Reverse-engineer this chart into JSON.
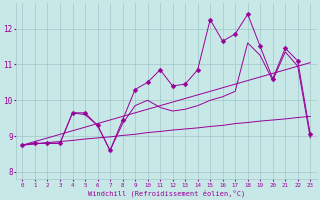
{
  "xlabel": "Windchill (Refroidissement éolien,°C)",
  "bg_color": "#c8e8e8",
  "line_color": "#990099",
  "grid_color": "#a0c8c8",
  "xlim": [
    -0.5,
    23.5
  ],
  "ylim": [
    7.8,
    12.7
  ],
  "xticks": [
    0,
    1,
    2,
    3,
    4,
    5,
    6,
    7,
    8,
    9,
    10,
    11,
    12,
    13,
    14,
    15,
    16,
    17,
    18,
    19,
    20,
    21,
    22,
    23
  ],
  "yticks": [
    8,
    9,
    10,
    11,
    12
  ],
  "series": [
    {
      "x": [
        0,
        1,
        2,
        3,
        4,
        5,
        6,
        7,
        8,
        9,
        10,
        11,
        12,
        13,
        14,
        15,
        16,
        17,
        18,
        19,
        20,
        21,
        22,
        23
      ],
      "y": [
        8.75,
        8.78,
        8.82,
        8.85,
        8.88,
        8.92,
        8.95,
        8.98,
        9.02,
        9.05,
        9.1,
        9.13,
        9.17,
        9.2,
        9.23,
        9.27,
        9.3,
        9.35,
        9.38,
        9.42,
        9.45,
        9.48,
        9.52,
        9.55
      ],
      "marker": null
    },
    {
      "x": [
        0,
        1,
        2,
        3,
        4,
        5,
        6,
        7,
        8,
        9,
        10,
        11,
        12,
        13,
        14,
        15,
        16,
        17,
        18,
        19,
        20,
        21,
        22,
        23
      ],
      "y": [
        8.75,
        8.85,
        8.95,
        9.05,
        9.15,
        9.25,
        9.35,
        9.45,
        9.55,
        9.65,
        9.75,
        9.85,
        9.95,
        10.05,
        10.15,
        10.25,
        10.35,
        10.45,
        10.55,
        10.65,
        10.75,
        10.85,
        10.95,
        11.05
      ],
      "marker": null
    },
    {
      "x": [
        0,
        1,
        2,
        3,
        4,
        5,
        6,
        7,
        8,
        9,
        10,
        11,
        12,
        13,
        14,
        15,
        16,
        17,
        18,
        19,
        20,
        21,
        22,
        23
      ],
      "y": [
        8.75,
        8.8,
        8.8,
        8.8,
        9.65,
        9.65,
        9.3,
        8.6,
        9.45,
        10.3,
        10.5,
        10.85,
        10.4,
        10.45,
        10.85,
        12.25,
        11.65,
        11.85,
        12.4,
        11.5,
        10.6,
        11.45,
        11.1,
        9.05
      ],
      "marker": "D"
    },
    {
      "x": [
        0,
        1,
        2,
        3,
        4,
        5,
        6,
        7,
        8,
        9,
        10,
        11,
        12,
        13,
        14,
        15,
        16,
        17,
        18,
        19,
        20,
        21,
        22,
        23
      ],
      "y": [
        8.75,
        8.8,
        8.8,
        8.8,
        9.65,
        9.6,
        9.3,
        8.6,
        9.35,
        9.85,
        10.0,
        9.8,
        9.7,
        9.75,
        9.85,
        10.0,
        10.1,
        10.25,
        11.6,
        11.25,
        10.55,
        11.35,
        10.95,
        8.95
      ],
      "marker": null
    }
  ]
}
